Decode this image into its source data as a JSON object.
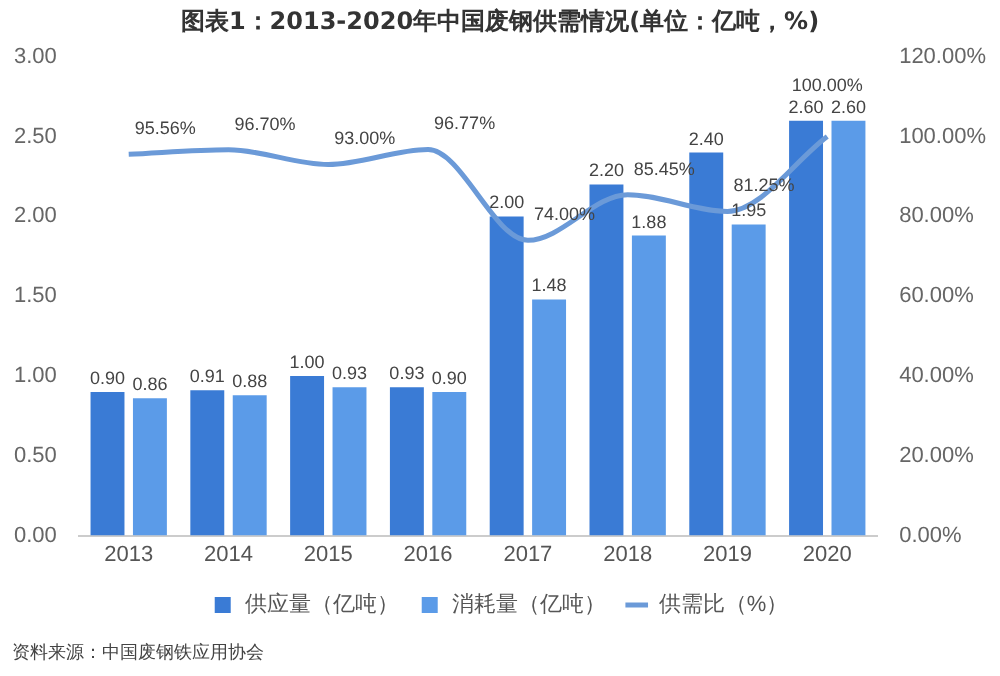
{
  "chart_data": {
    "type": "bar",
    "title": "图表1：2013-2020年中国废钢供需情况(单位：亿吨，%)",
    "categories": [
      "2013",
      "2014",
      "2015",
      "2016",
      "2017",
      "2018",
      "2019",
      "2020"
    ],
    "series": [
      {
        "name": "供应量（亿吨）",
        "color": "#3a7bd5",
        "values": [
          0.9,
          0.91,
          1.0,
          0.93,
          2.0,
          2.2,
          2.4,
          2.6
        ],
        "value_labels": [
          "0.90",
          "0.91",
          "1.00",
          "0.93",
          "2.00",
          "2.20",
          "2.40",
          "2.60"
        ]
      },
      {
        "name": "消耗量（亿吨）",
        "color": "#5b9be8",
        "values": [
          0.86,
          0.88,
          0.93,
          0.9,
          1.48,
          1.88,
          1.95,
          2.6
        ],
        "value_labels": [
          "0.86",
          "0.88",
          "0.93",
          "0.90",
          "1.48",
          "1.88",
          "1.95",
          "2.60"
        ]
      },
      {
        "name": "供需比（%）",
        "type": "line",
        "axis": "y2",
        "color": "#6b9ad8",
        "values": [
          95.56,
          96.7,
          93.0,
          96.77,
          74.0,
          85.45,
          81.25,
          100.0
        ],
        "value_labels": [
          "95.56%",
          "96.70%",
          "93.00%",
          "96.77%",
          "74.00%",
          "85.45%",
          "81.25%",
          "100.00%"
        ]
      }
    ],
    "ylim": [
      0,
      3
    ],
    "yticks": [
      {
        "value": 0,
        "label": "0.00"
      },
      {
        "value": 0.5,
        "label": "0.50"
      },
      {
        "value": 1,
        "label": "1.00"
      },
      {
        "value": 1.5,
        "label": "1.50"
      },
      {
        "value": 2,
        "label": "2.00"
      },
      {
        "value": 2.5,
        "label": "2.50"
      },
      {
        "value": 3,
        "label": "3.00"
      }
    ],
    "y2lim": [
      0,
      120
    ],
    "y2ticks": [
      {
        "value": 0,
        "label": "0.00%"
      },
      {
        "value": 20,
        "label": "20.00%"
      },
      {
        "value": 40,
        "label": "40.00%"
      },
      {
        "value": 60,
        "label": "60.00%"
      },
      {
        "value": 80,
        "label": "80.00%"
      },
      {
        "value": 100,
        "label": "100.00%"
      },
      {
        "value": 120,
        "label": "120.00%"
      }
    ],
    "grid": false,
    "legend": "bottom",
    "marker": "none",
    "line_style": "solid",
    "annotations": [
      "资料来源：中国废钢铁应用协会"
    ]
  }
}
